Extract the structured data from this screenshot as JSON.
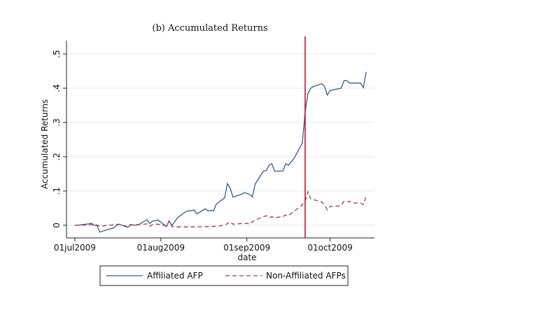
{
  "chart_data": {
    "type": "line",
    "title": "(b) Accumulated Returns",
    "x_label": "date",
    "y_label": "Accumulated Returns",
    "x": [
      "2009-07-01",
      "2009-07-02",
      "2009-07-03",
      "2009-07-06",
      "2009-07-07",
      "2009-07-08",
      "2009-07-09",
      "2009-07-10",
      "2009-07-13",
      "2009-07-15",
      "2009-07-16",
      "2009-07-17",
      "2009-07-20",
      "2009-07-21",
      "2009-07-22",
      "2009-07-23",
      "2009-07-24",
      "2009-07-27",
      "2009-07-28",
      "2009-07-29",
      "2009-07-30",
      "2009-07-31",
      "2009-08-03",
      "2009-08-04",
      "2009-08-05",
      "2009-08-06",
      "2009-08-07",
      "2009-08-10",
      "2009-08-11",
      "2009-08-12",
      "2009-08-13",
      "2009-08-14",
      "2009-08-17",
      "2009-08-18",
      "2009-08-19",
      "2009-08-20",
      "2009-08-21",
      "2009-08-24",
      "2009-08-25",
      "2009-08-26",
      "2009-08-27",
      "2009-08-30",
      "2009-08-31",
      "2009-09-01",
      "2009-09-02",
      "2009-09-03",
      "2009-09-04",
      "2009-09-07",
      "2009-09-08",
      "2009-09-09",
      "2009-09-10",
      "2009-09-11",
      "2009-09-14",
      "2009-09-15",
      "2009-09-16",
      "2009-09-17",
      "2009-09-18",
      "2009-09-21",
      "2009-09-22",
      "2009-09-23",
      "2009-09-24",
      "2009-09-25",
      "2009-09-28",
      "2009-09-29",
      "2009-09-30",
      "2009-10-01",
      "2009-10-02",
      "2009-10-05",
      "2009-10-06",
      "2009-10-07",
      "2009-10-08",
      "2009-10-09",
      "2009-10-12",
      "2009-10-13",
      "2009-10-14"
    ],
    "series": [
      {
        "name": "Affiliated AFP",
        "color": "#3b5a7d",
        "dash": false,
        "values": [
          0,
          0,
          0.001,
          0.004,
          0.006,
          0,
          -0.001,
          -0.02,
          -0.012,
          -0.008,
          0,
          0.003,
          -0.006,
          0,
          0.001,
          0,
          0.002,
          0.016,
          0.005,
          0.012,
          0.013,
          0.015,
          -0.004,
          0.012,
          0,
          0.01,
          0.022,
          0.04,
          0.042,
          0.042,
          0.045,
          0.033,
          0.048,
          0.042,
          0.043,
          0.042,
          0.062,
          0.08,
          0.122,
          0.108,
          0.082,
          0.09,
          0.095,
          0.093,
          0.09,
          0.083,
          0.12,
          0.158,
          0.16,
          0.175,
          0.18,
          0.158,
          0.158,
          0.18,
          0.175,
          0.185,
          0.195,
          0.24,
          0.33,
          0.385,
          0.4,
          0.405,
          0.413,
          0.405,
          0.38,
          0.393,
          0.395,
          0.4,
          0.422,
          0.422,
          0.415,
          0.415,
          0.415,
          0.402,
          0.448
        ]
      },
      {
        "name": "Non-Affiliated AFPs",
        "color": "#93404f",
        "dash": true,
        "values": [
          0,
          0,
          0,
          0.001,
          0.002,
          0,
          0.001,
          -0.003,
          0,
          0.001,
          0.002,
          0.003,
          -0.004,
          0.002,
          0.001,
          0.002,
          0.002,
          0.004,
          -0.003,
          0.002,
          0.003,
          0.003,
          -0.002,
          0.013,
          -0.004,
          -0.004,
          -0.005,
          -0.005,
          -0.005,
          -0.005,
          -0.005,
          -0.005,
          -0.004,
          -0.004,
          -0.004,
          -0.003,
          -0.003,
          0,
          0.005,
          0.01,
          0.003,
          0.005,
          0.004,
          0.006,
          0.003,
          0.01,
          0.015,
          0.025,
          0.028,
          0.022,
          0.025,
          0.022,
          0.025,
          0.03,
          0.028,
          0.035,
          0.04,
          0.06,
          0.07,
          0.098,
          0.077,
          0.075,
          0.068,
          0.06,
          0.045,
          0.055,
          0.055,
          0.057,
          0.07,
          0.068,
          0.07,
          0.065,
          0.065,
          0.06,
          0.085
        ]
      }
    ],
    "xlim": [
      "2009-06-28",
      "2009-10-17"
    ],
    "xticks": [
      {
        "value": "2009-07-01",
        "label": "01jul2009"
      },
      {
        "value": "2009-08-01",
        "label": "01aug2009"
      },
      {
        "value": "2009-09-01",
        "label": "01sep2009"
      },
      {
        "value": "2009-10-01",
        "label": "01oct2009"
      }
    ],
    "ylim": [
      -0.037,
      0.539
    ],
    "yticks": [
      0,
      {
        "value": 0.1,
        "label": ".1"
      },
      {
        "value": 0.2,
        "label": ".2"
      },
      {
        "value": 0.3,
        "label": ".3"
      },
      {
        "value": 0.4,
        "label": ".4"
      },
      {
        "value": 0.5,
        "label": ".5"
      }
    ],
    "grid": true,
    "vline": {
      "x": "2009-09-22",
      "color": "#cc0022"
    },
    "legend": "bottom"
  }
}
